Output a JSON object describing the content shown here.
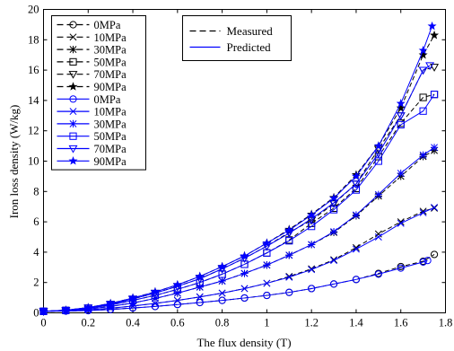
{
  "chart_data": {
    "type": "line",
    "title": "",
    "xlabel": "The flux density (T)",
    "ylabel": "Iron loss density (W/kg)",
    "xlim": [
      0,
      1.8
    ],
    "ylim": [
      0,
      20
    ],
    "xticks": [
      "0",
      "0.2",
      "0.4",
      "0.6",
      "0.8",
      "1",
      "1.2",
      "1.4",
      "1.6",
      "1.8"
    ],
    "yticks": [
      "0",
      "2",
      "4",
      "6",
      "8",
      "10",
      "12",
      "14",
      "16",
      "18",
      "20"
    ],
    "grid": false,
    "legend_style": {
      "position": "top-left",
      "entries": [
        {
          "label": "0MPa",
          "color": "#000000",
          "dash": true,
          "marker": "circle"
        },
        {
          "label": "10MPa",
          "color": "#000000",
          "dash": true,
          "marker": "x"
        },
        {
          "label": "30MPa",
          "color": "#000000",
          "dash": true,
          "marker": "asterisk"
        },
        {
          "label": "50MPa",
          "color": "#000000",
          "dash": true,
          "marker": "square"
        },
        {
          "label": "70MPa",
          "color": "#000000",
          "dash": true,
          "marker": "triangle-down"
        },
        {
          "label": "90MPa",
          "color": "#000000",
          "dash": true,
          "marker": "star"
        },
        {
          "label": "0MPa",
          "color": "#0000ff",
          "dash": false,
          "marker": "circle"
        },
        {
          "label": "10MPa",
          "color": "#0000ff",
          "dash": false,
          "marker": "x"
        },
        {
          "label": "30MPa",
          "color": "#0000ff",
          "dash": false,
          "marker": "asterisk"
        },
        {
          "label": "50MPa",
          "color": "#0000ff",
          "dash": false,
          "marker": "square"
        },
        {
          "label": "70MPa",
          "color": "#0000ff",
          "dash": false,
          "marker": "triangle-down"
        },
        {
          "label": "90MPa",
          "color": "#0000ff",
          "dash": false,
          "marker": "star"
        }
      ]
    },
    "legend2": [
      {
        "label": "Measured",
        "color": "#000000",
        "dash": true
      },
      {
        "label": "Predicted",
        "color": "#0000ff",
        "dash": false
      }
    ],
    "x": [
      0.0,
      0.1,
      0.2,
      0.3,
      0.4,
      0.5,
      0.6,
      0.7,
      0.8,
      0.9,
      1.0,
      1.1,
      1.2,
      1.3,
      1.4,
      1.5,
      1.6,
      1.7,
      1.75
    ],
    "series": [
      {
        "name": "Measured 0MPa",
        "color": "#000000",
        "dash": true,
        "marker": "circle",
        "x": [
          0.0,
          0.1,
          0.2,
          0.3,
          0.4,
          0.5,
          0.6,
          0.7,
          0.8,
          0.9,
          1.0,
          1.1,
          1.2,
          1.3,
          1.4,
          1.5,
          1.6,
          1.7,
          1.75
        ],
        "values": [
          0.1,
          0.12,
          0.15,
          0.22,
          0.32,
          0.42,
          0.55,
          0.68,
          0.82,
          0.98,
          1.15,
          1.35,
          1.6,
          1.9,
          2.2,
          2.6,
          3.05,
          3.4,
          3.85
        ]
      },
      {
        "name": "Measured 10MPa",
        "color": "#000000",
        "dash": true,
        "marker": "x",
        "x": [
          0.0,
          0.1,
          0.2,
          0.3,
          0.4,
          0.5,
          0.6,
          0.7,
          0.8,
          0.9,
          1.0,
          1.1,
          1.2,
          1.3,
          1.4,
          1.5,
          1.6,
          1.7,
          1.75
        ],
        "values": [
          0.1,
          0.14,
          0.2,
          0.3,
          0.45,
          0.62,
          0.82,
          1.05,
          1.3,
          1.6,
          1.95,
          2.4,
          2.9,
          3.5,
          4.3,
          5.2,
          6.0,
          6.7,
          6.9
        ]
      },
      {
        "name": "Measured 30MPa",
        "color": "#000000",
        "dash": true,
        "marker": "asterisk",
        "x": [
          0.0,
          0.1,
          0.2,
          0.3,
          0.4,
          0.5,
          0.6,
          0.7,
          0.8,
          0.9,
          1.0,
          1.1,
          1.2,
          1.3,
          1.4,
          1.5,
          1.6,
          1.7,
          1.75
        ],
        "values": [
          0.1,
          0.15,
          0.25,
          0.42,
          0.65,
          0.95,
          1.3,
          1.7,
          2.1,
          2.6,
          3.15,
          3.8,
          4.5,
          5.3,
          6.4,
          7.7,
          9.0,
          10.3,
          10.7
        ]
      },
      {
        "name": "Measured 50MPa",
        "color": "#000000",
        "dash": true,
        "marker": "square",
        "x": [
          0.0,
          0.1,
          0.2,
          0.3,
          0.4,
          0.5,
          0.6,
          0.7,
          0.8,
          0.9,
          1.0,
          1.1,
          1.2,
          1.3,
          1.4,
          1.5,
          1.6,
          1.7,
          1.75
        ],
        "values": [
          0.1,
          0.16,
          0.3,
          0.52,
          0.82,
          1.15,
          1.55,
          2.0,
          2.55,
          3.2,
          3.95,
          4.8,
          5.9,
          6.9,
          8.2,
          10.3,
          12.5,
          14.2,
          14.4
        ]
      },
      {
        "name": "Measured 70MPa",
        "color": "#000000",
        "dash": true,
        "marker": "triangle-down",
        "x": [
          0.0,
          0.1,
          0.2,
          0.3,
          0.4,
          0.5,
          0.6,
          0.7,
          0.8,
          0.9,
          1.0,
          1.1,
          1.2,
          1.3,
          1.4,
          1.5,
          1.6,
          1.7,
          1.75
        ],
        "values": [
          0.1,
          0.17,
          0.33,
          0.58,
          0.92,
          1.3,
          1.75,
          2.25,
          2.9,
          3.6,
          4.4,
          5.3,
          6.1,
          7.2,
          8.5,
          10.8,
          13.0,
          16.0,
          16.2
        ]
      },
      {
        "name": "Measured 90MPa",
        "color": "#000000",
        "dash": true,
        "marker": "star",
        "x": [
          0.0,
          0.1,
          0.2,
          0.3,
          0.4,
          0.5,
          0.6,
          0.7,
          0.8,
          0.9,
          1.0,
          1.1,
          1.2,
          1.3,
          1.4,
          1.5,
          1.6,
          1.7,
          1.75
        ],
        "values": [
          0.1,
          0.18,
          0.35,
          0.62,
          0.98,
          1.38,
          1.85,
          2.4,
          3.05,
          3.75,
          4.6,
          5.5,
          6.5,
          7.6,
          9.1,
          11.0,
          13.5,
          17.0,
          18.3
        ]
      },
      {
        "name": "Predicted 0MPa",
        "color": "#0000ff",
        "dash": false,
        "marker": "circle",
        "x": [
          0.0,
          0.1,
          0.2,
          0.3,
          0.4,
          0.5,
          0.6,
          0.7,
          0.8,
          0.9,
          1.0,
          1.1,
          1.2,
          1.3,
          1.4,
          1.5,
          1.6,
          1.7,
          1.72
        ],
        "values": [
          0.1,
          0.12,
          0.15,
          0.22,
          0.32,
          0.42,
          0.55,
          0.68,
          0.82,
          0.98,
          1.15,
          1.35,
          1.6,
          1.9,
          2.2,
          2.55,
          2.95,
          3.35,
          3.45
        ]
      },
      {
        "name": "Predicted 10MPa",
        "color": "#0000ff",
        "dash": false,
        "marker": "x",
        "x": [
          0.0,
          0.1,
          0.2,
          0.3,
          0.4,
          0.5,
          0.6,
          0.7,
          0.8,
          0.9,
          1.0,
          1.1,
          1.2,
          1.3,
          1.4,
          1.5,
          1.6,
          1.7,
          1.75
        ],
        "values": [
          0.1,
          0.14,
          0.2,
          0.3,
          0.45,
          0.62,
          0.82,
          1.05,
          1.3,
          1.6,
          1.95,
          2.35,
          2.85,
          3.45,
          4.2,
          5.0,
          5.9,
          6.6,
          6.95
        ]
      },
      {
        "name": "Predicted 30MPa",
        "color": "#0000ff",
        "dash": false,
        "marker": "asterisk",
        "x": [
          0.0,
          0.1,
          0.2,
          0.3,
          0.4,
          0.5,
          0.6,
          0.7,
          0.8,
          0.9,
          1.0,
          1.1,
          1.2,
          1.3,
          1.4,
          1.5,
          1.6,
          1.7,
          1.75
        ],
        "values": [
          0.1,
          0.15,
          0.25,
          0.42,
          0.65,
          0.95,
          1.3,
          1.7,
          2.1,
          2.6,
          3.15,
          3.8,
          4.5,
          5.35,
          6.45,
          7.8,
          9.2,
          10.4,
          10.9
        ]
      },
      {
        "name": "Predicted 50MPa",
        "color": "#0000ff",
        "dash": false,
        "marker": "square",
        "x": [
          0.0,
          0.1,
          0.2,
          0.3,
          0.4,
          0.5,
          0.6,
          0.7,
          0.8,
          0.9,
          1.0,
          1.1,
          1.2,
          1.3,
          1.4,
          1.5,
          1.6,
          1.7,
          1.75
        ],
        "values": [
          0.1,
          0.16,
          0.3,
          0.52,
          0.82,
          1.15,
          1.55,
          2.0,
          2.55,
          3.2,
          3.95,
          4.75,
          5.7,
          6.8,
          8.1,
          10.0,
          12.4,
          13.3,
          14.4
        ]
      },
      {
        "name": "Predicted 70MPa",
        "color": "#0000ff",
        "dash": false,
        "marker": "triangle-down",
        "x": [
          0.0,
          0.1,
          0.2,
          0.3,
          0.4,
          0.5,
          0.6,
          0.7,
          0.8,
          0.9,
          1.0,
          1.1,
          1.2,
          1.3,
          1.4,
          1.5,
          1.6,
          1.7,
          1.73
        ],
        "values": [
          0.1,
          0.17,
          0.33,
          0.58,
          0.92,
          1.3,
          1.75,
          2.25,
          2.9,
          3.6,
          4.4,
          5.25,
          6.2,
          7.25,
          8.5,
          10.5,
          13.0,
          16.0,
          16.3
        ]
      },
      {
        "name": "Predicted 90MPa",
        "color": "#0000ff",
        "dash": false,
        "marker": "star",
        "x": [
          0.0,
          0.1,
          0.2,
          0.3,
          0.4,
          0.5,
          0.6,
          0.7,
          0.8,
          0.9,
          1.0,
          1.1,
          1.2,
          1.3,
          1.4,
          1.5,
          1.6,
          1.7,
          1.74
        ],
        "values": [
          0.1,
          0.18,
          0.35,
          0.62,
          0.98,
          1.38,
          1.85,
          2.4,
          3.05,
          3.75,
          4.6,
          5.45,
          6.45,
          7.55,
          9.0,
          11.0,
          13.8,
          17.3,
          18.9
        ]
      }
    ]
  }
}
